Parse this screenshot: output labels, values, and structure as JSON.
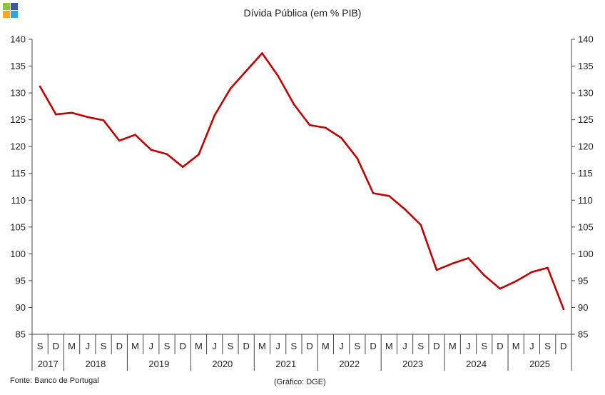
{
  "title": "Dívida Pública (em % PIB)",
  "source": "Fonte: Banco de Portugal",
  "credit": "(Gráfico: DGE)",
  "logo_colors": [
    "#8cc63f",
    "#3a5ba0",
    "#f7a823",
    "#29a8df"
  ],
  "chart_data": {
    "type": "line",
    "title": "Dívida Pública (em % PIB)",
    "xlabel": "",
    "ylabel": "",
    "ylim": [
      85,
      140
    ],
    "yticks": [
      85,
      90,
      95,
      100,
      105,
      110,
      115,
      120,
      125,
      130,
      135,
      140
    ],
    "y_axes": "left and right",
    "grid": false,
    "line_color": "#c00000",
    "x": [
      "S 2017",
      "D 2017",
      "M 2018",
      "J 2018",
      "S 2018",
      "D 2018",
      "M 2019",
      "J 2019",
      "S 2019",
      "D 2019",
      "M 2020",
      "J 2020",
      "S 2020",
      "D 2020",
      "M 2021",
      "J 2021",
      "S 2021",
      "D 2021",
      "M 2022",
      "J 2022",
      "S 2022",
      "D 2022",
      "M 2023",
      "J 2023",
      "S 2023",
      "D 2023",
      "M 2024",
      "J 2024",
      "S 2024",
      "D 2024",
      "M 2025",
      "J 2025",
      "S 2025",
      "D 2025"
    ],
    "month_labels": [
      "S",
      "D",
      "M",
      "J",
      "S",
      "D",
      "M",
      "J",
      "S",
      "D",
      "M",
      "J",
      "S",
      "D",
      "M",
      "J",
      "S",
      "D",
      "M",
      "J",
      "S",
      "D",
      "M",
      "J",
      "S",
      "D",
      "M",
      "J",
      "S",
      "D",
      "M",
      "J",
      "S",
      "D"
    ],
    "year_groups": [
      {
        "label": "2017",
        "count": 2
      },
      {
        "label": "2018",
        "count": 4
      },
      {
        "label": "2019",
        "count": 4
      },
      {
        "label": "2020",
        "count": 4
      },
      {
        "label": "2021",
        "count": 4
      },
      {
        "label": "2022",
        "count": 4
      },
      {
        "label": "2023",
        "count": 4
      },
      {
        "label": "2024",
        "count": 4
      },
      {
        "label": "2025",
        "count": 4
      }
    ],
    "series": [
      {
        "values": [
          131.2,
          126.0,
          126.3,
          125.5,
          124.9,
          121.1,
          122.2,
          119.4,
          118.6,
          116.2,
          118.5,
          125.8,
          130.8,
          134.1,
          137.4,
          133.2,
          127.9,
          124.0,
          123.5,
          121.6,
          117.8,
          111.3,
          110.8,
          108.3,
          105.4,
          97.0,
          98.2,
          99.2,
          96.0,
          93.5,
          94.9,
          96.6,
          97.4,
          89.7
        ]
      }
    ]
  }
}
